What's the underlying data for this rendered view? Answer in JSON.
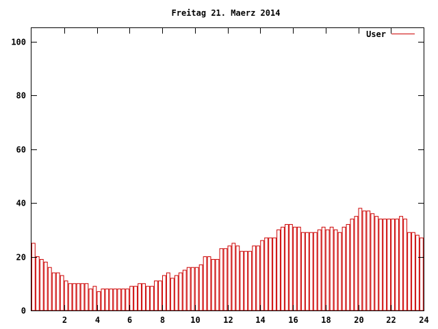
{
  "chart_data": {
    "type": "bar",
    "title": "Freitag 21. Maerz 2014",
    "xlabel": "",
    "ylabel": "",
    "xlim": [
      0,
      24
    ],
    "ylim": [
      0,
      105
    ],
    "x_ticks": [
      "2",
      "4",
      "6",
      "8",
      "10",
      "12",
      "14",
      "16",
      "18",
      "20",
      "22",
      "24"
    ],
    "y_ticks": [
      "0",
      "20",
      "40",
      "60",
      "80",
      "100"
    ],
    "grid": false,
    "legend_position": "top-right",
    "bar_color": "#cc0000",
    "series": [
      {
        "name": "User",
        "points": [
          [
            0.0,
            25
          ],
          [
            0.25,
            20
          ],
          [
            0.5,
            19
          ],
          [
            0.75,
            18
          ],
          [
            1.0,
            16
          ],
          [
            1.25,
            14
          ],
          [
            1.5,
            14
          ],
          [
            1.75,
            13
          ],
          [
            2.0,
            11
          ],
          [
            2.25,
            10
          ],
          [
            2.5,
            10
          ],
          [
            2.75,
            10
          ],
          [
            3.0,
            10
          ],
          [
            3.25,
            10
          ],
          [
            3.5,
            8
          ],
          [
            3.75,
            9
          ],
          [
            4.0,
            7
          ],
          [
            4.25,
            8
          ],
          [
            4.5,
            8
          ],
          [
            4.75,
            8
          ],
          [
            5.0,
            8
          ],
          [
            5.25,
            8
          ],
          [
            5.5,
            8
          ],
          [
            5.75,
            8
          ],
          [
            6.0,
            9
          ],
          [
            6.25,
            9
          ],
          [
            6.5,
            10
          ],
          [
            6.75,
            10
          ],
          [
            7.0,
            9
          ],
          [
            7.25,
            9
          ],
          [
            7.5,
            11
          ],
          [
            7.75,
            11
          ],
          [
            8.0,
            13
          ],
          [
            8.25,
            14
          ],
          [
            8.5,
            12
          ],
          [
            8.75,
            13
          ],
          [
            9.0,
            14
          ],
          [
            9.25,
            15
          ],
          [
            9.5,
            16
          ],
          [
            9.75,
            16
          ],
          [
            10.0,
            16
          ],
          [
            10.25,
            17
          ],
          [
            10.5,
            20
          ],
          [
            10.75,
            20
          ],
          [
            11.0,
            19
          ],
          [
            11.25,
            19
          ],
          [
            11.5,
            23
          ],
          [
            11.75,
            23
          ],
          [
            12.0,
            24
          ],
          [
            12.25,
            25
          ],
          [
            12.5,
            24
          ],
          [
            12.75,
            22
          ],
          [
            13.0,
            22
          ],
          [
            13.25,
            22
          ],
          [
            13.5,
            24
          ],
          [
            13.75,
            24
          ],
          [
            14.0,
            26
          ],
          [
            14.25,
            27
          ],
          [
            14.5,
            27
          ],
          [
            14.75,
            27
          ],
          [
            15.0,
            30
          ],
          [
            15.25,
            31
          ],
          [
            15.5,
            32
          ],
          [
            15.75,
            32
          ],
          [
            16.0,
            31
          ],
          [
            16.25,
            31
          ],
          [
            16.5,
            29
          ],
          [
            16.75,
            29
          ],
          [
            17.0,
            29
          ],
          [
            17.25,
            29
          ],
          [
            17.5,
            30
          ],
          [
            17.75,
            31
          ],
          [
            18.0,
            30
          ],
          [
            18.25,
            31
          ],
          [
            18.5,
            30
          ],
          [
            18.75,
            29
          ],
          [
            19.0,
            31
          ],
          [
            19.25,
            32
          ],
          [
            19.5,
            34
          ],
          [
            19.75,
            35
          ],
          [
            20.0,
            38
          ],
          [
            20.25,
            37
          ],
          [
            20.5,
            37
          ],
          [
            20.75,
            36
          ],
          [
            21.0,
            35
          ],
          [
            21.25,
            34
          ],
          [
            21.5,
            34
          ],
          [
            21.75,
            34
          ],
          [
            22.0,
            34
          ],
          [
            22.25,
            34
          ],
          [
            22.5,
            35
          ],
          [
            22.75,
            34
          ],
          [
            23.0,
            29
          ],
          [
            23.25,
            29
          ],
          [
            23.5,
            28
          ],
          [
            23.75,
            27
          ]
        ]
      }
    ]
  }
}
